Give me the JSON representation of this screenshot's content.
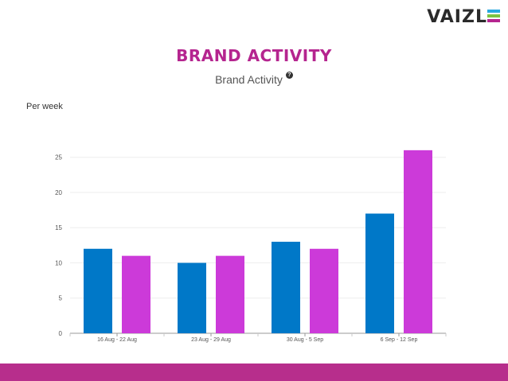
{
  "logo": {
    "text_left": "VAIZL",
    "text_e": "E",
    "stripe_colors": [
      "#29a8e0",
      "#7cc242",
      "#b5258f"
    ]
  },
  "slide_title": "BRAND ACTIVITY",
  "chart_data": {
    "type": "bar",
    "title": "Brand Activity",
    "ylabel": "Per week",
    "xlabel": "",
    "categories": [
      "16 Aug - 22 Aug",
      "23 Aug - 29 Aug",
      "30 Aug - 5 Sep",
      "6 Sep - 12 Sep"
    ],
    "series": [
      {
        "color": "#0078c8",
        "values": [
          12,
          10,
          13,
          17
        ]
      },
      {
        "color": "#cc3ad9",
        "values": [
          11,
          11,
          12,
          26
        ]
      }
    ],
    "ylim": [
      0,
      27
    ],
    "yticks": [
      0,
      5,
      10,
      15,
      20,
      25
    ],
    "grid": true
  },
  "colors": {
    "accent": "#b5258f",
    "footer": "#b72e8c"
  }
}
